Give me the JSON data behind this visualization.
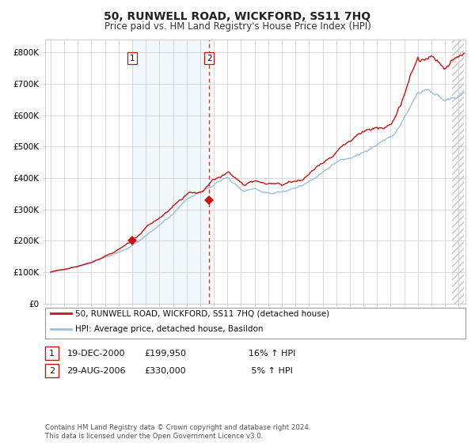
{
  "title": "50, RUNWELL ROAD, WICKFORD, SS11 7HQ",
  "subtitle": "Price paid vs. HM Land Registry's House Price Index (HPI)",
  "title_fontsize": 10,
  "subtitle_fontsize": 8.5,
  "ylim": [
    0,
    840000
  ],
  "yticks": [
    0,
    100000,
    200000,
    300000,
    400000,
    500000,
    600000,
    700000,
    800000
  ],
  "ytick_labels": [
    "£0",
    "£100K",
    "£200K",
    "£300K",
    "£400K",
    "£500K",
    "£600K",
    "£700K",
    "£800K"
  ],
  "hpi_color": "#9bbfe0",
  "price_color": "#cc1111",
  "background_color": "#ffffff",
  "grid_color": "#cccccc",
  "sale1_date_num": 2001.0,
  "sale1_price": 199950,
  "sale2_date_num": 2006.67,
  "sale2_price": 330000,
  "shade_start": 2001.0,
  "shade_end": 2006.67,
  "right_shade_start": 2024.5,
  "right_shade_end": 2025.4,
  "legend_line1": "50, RUNWELL ROAD, WICKFORD, SS11 7HQ (detached house)",
  "legend_line2": "HPI: Average price, detached house, Basildon",
  "footer": "Contains HM Land Registry data © Crown copyright and database right 2024.\nThis data is licensed under the Open Government Licence v3.0.",
  "xmin": 1994.6,
  "xmax": 2025.5
}
